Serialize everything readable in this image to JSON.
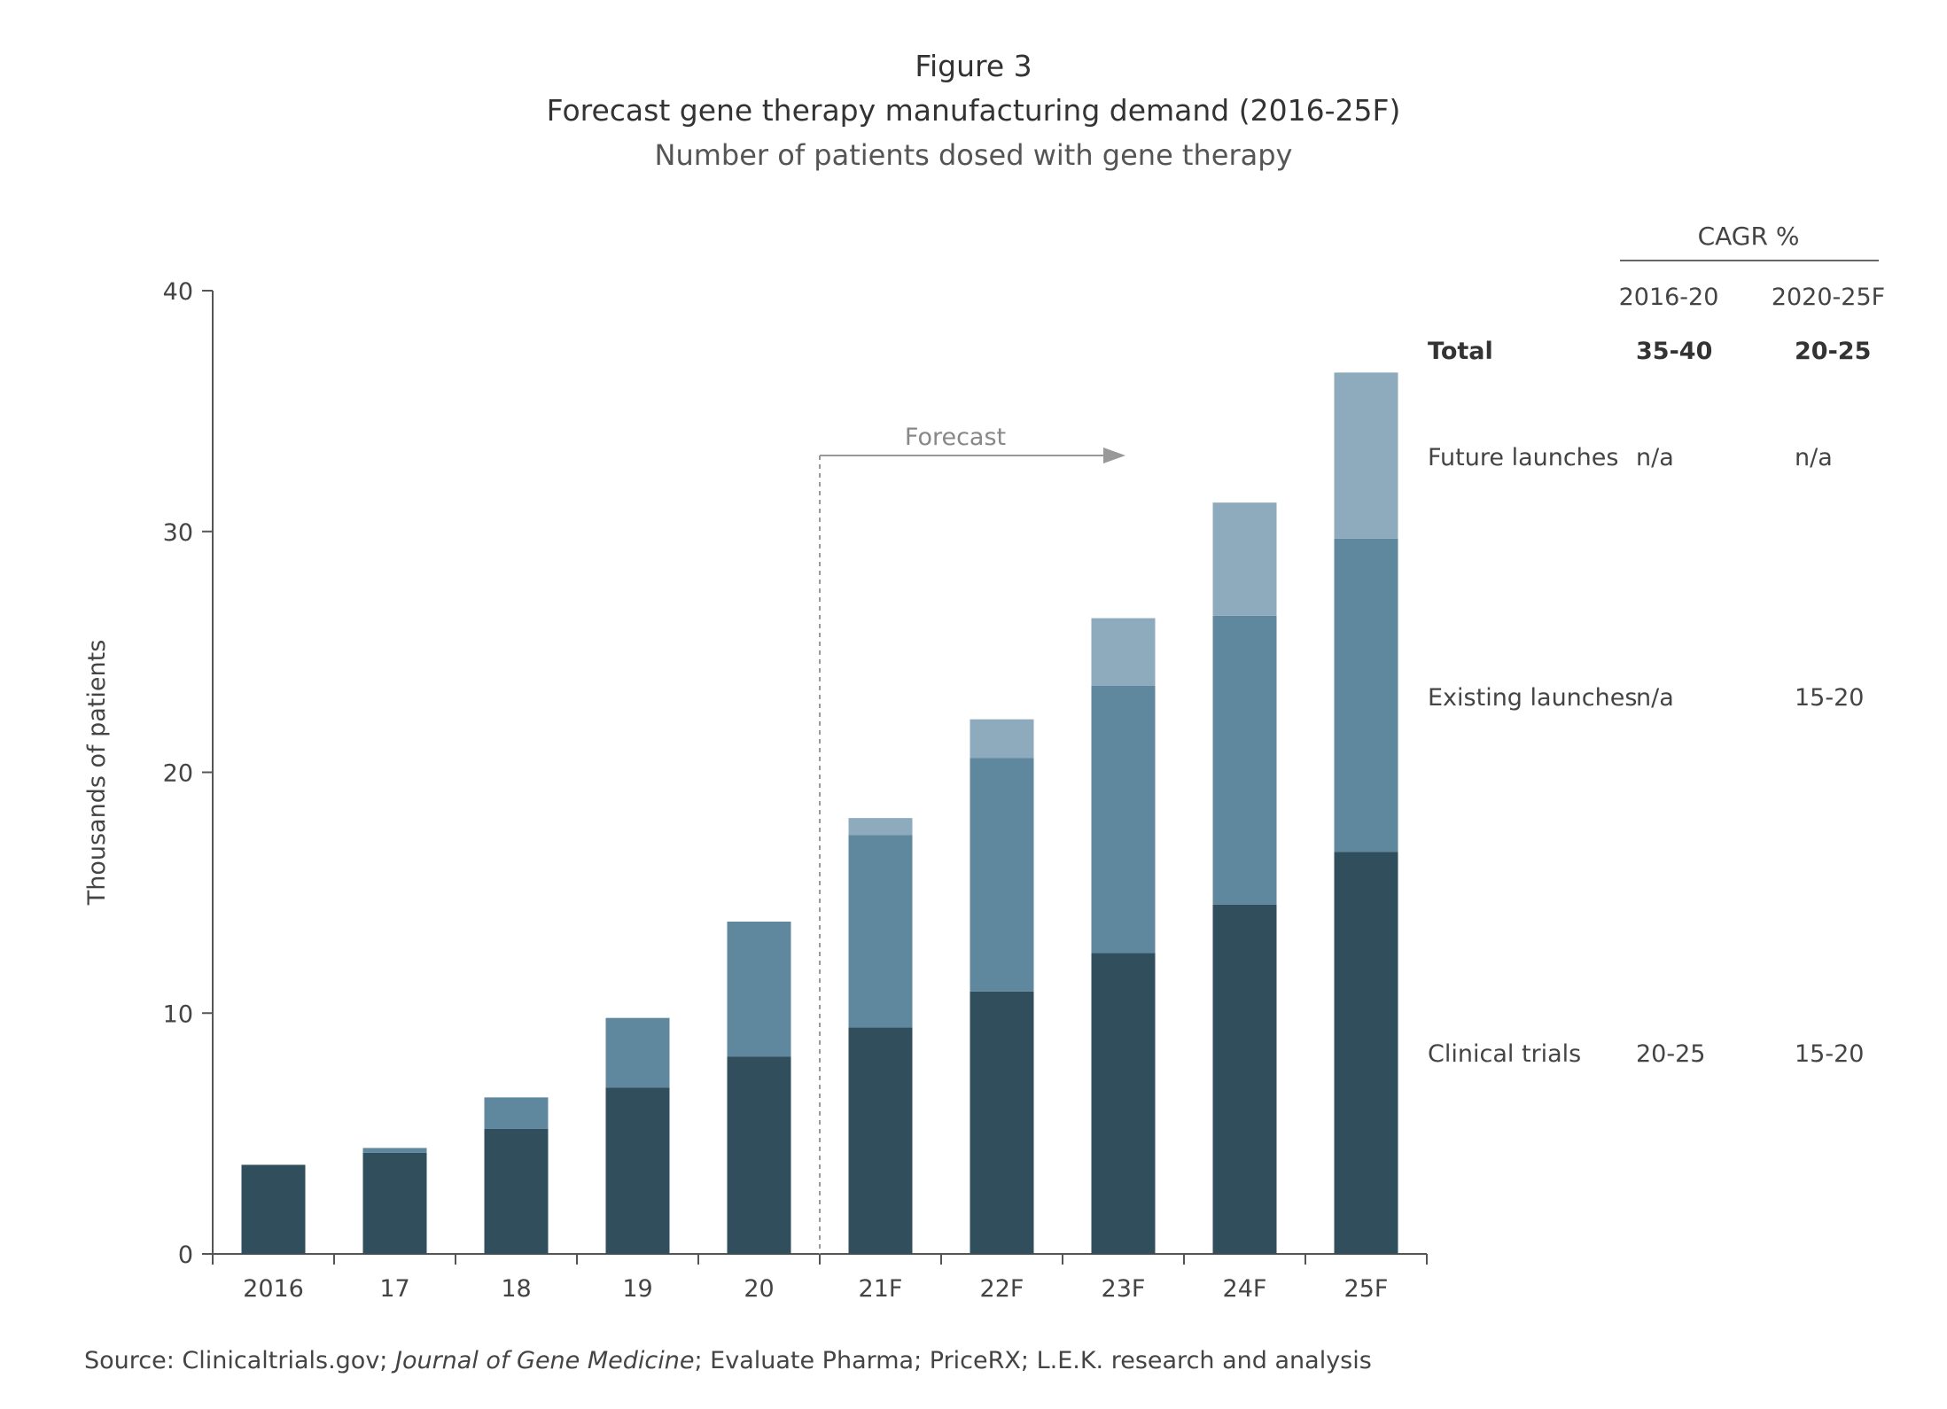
{
  "figure_label": "Figure 3",
  "title": "Forecast gene therapy manufacturing demand (2016-25F)",
  "subtitle": "Number of patients dosed with gene therapy",
  "source": {
    "prefix": "Source: Clinicaltrials.gov; ",
    "italic": "Journal of Gene Medicine",
    "suffix": "; Evaluate Pharma; PriceRX; L.E.K. research and analysis"
  },
  "forecast_label": "Forecast",
  "colors": {
    "clinical_trials": "#314e5c",
    "existing_launches": "#5f889f",
    "future_launches": "#8eabbd",
    "axis": "#555555",
    "forecast_line": "#999999"
  },
  "cagr_table": {
    "header": "CAGR %",
    "columns": [
      "2016-20",
      "2020-25F"
    ],
    "rows": [
      {
        "label": "Total",
        "values": [
          "35-40",
          "20-25"
        ],
        "bold": true
      },
      {
        "label": "Future launches",
        "values": [
          "n/a",
          "n/a"
        ],
        "bold": false
      },
      {
        "label": "Existing launches",
        "values": [
          "n/a",
          "15-20"
        ],
        "bold": false
      },
      {
        "label": "Clinical trials",
        "values": [
          "20-25",
          "15-20"
        ],
        "bold": false
      }
    ]
  },
  "chart_data": {
    "type": "bar",
    "stacked": true,
    "categories": [
      "2016",
      "17",
      "18",
      "19",
      "20",
      "21F",
      "22F",
      "23F",
      "24F",
      "25F"
    ],
    "series": [
      {
        "name": "Clinical trials",
        "values": [
          3.7,
          4.2,
          5.2,
          6.9,
          8.2,
          9.4,
          10.9,
          12.5,
          14.5,
          16.7
        ]
      },
      {
        "name": "Existing launches",
        "values": [
          0,
          0.2,
          1.3,
          2.9,
          5.6,
          8.0,
          9.7,
          11.1,
          12.0,
          13.0
        ]
      },
      {
        "name": "Future launches",
        "values": [
          0,
          0,
          0,
          0,
          0,
          0.7,
          1.6,
          2.8,
          4.7,
          6.9
        ]
      }
    ],
    "ylabel": "Thousands of patients",
    "xlabel": "",
    "ylim": [
      0,
      40
    ],
    "yticks": [
      0,
      10,
      20,
      30,
      40
    ],
    "forecast_start_after": "20",
    "grid": false,
    "legend": "none"
  }
}
